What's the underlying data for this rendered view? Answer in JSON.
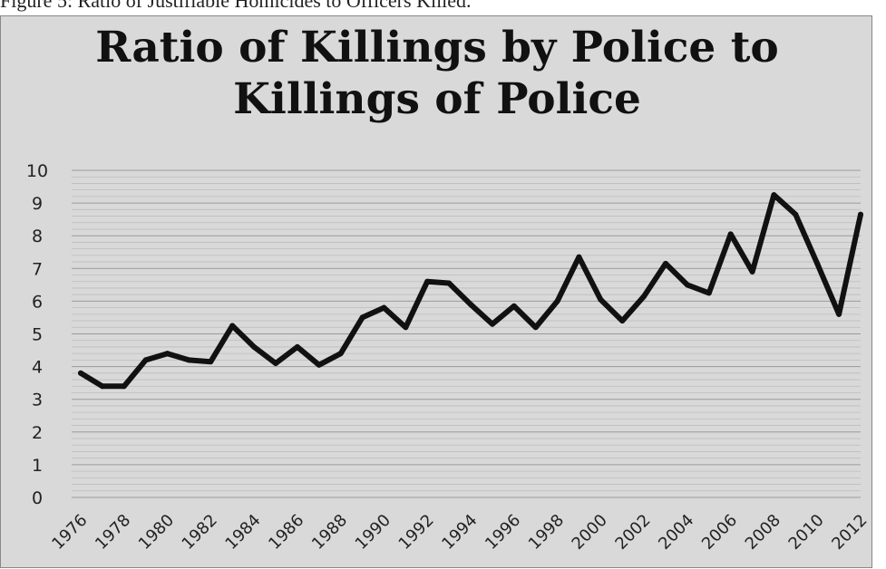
{
  "caption": "Figure 5: Ratio of Justifiable Homicides to Officers Killed.",
  "chart_data": {
    "type": "line",
    "title_lines": [
      "Ratio of Killings by Police to",
      "Killings of Police"
    ],
    "xlabel": "",
    "ylabel": "",
    "ylim": [
      0,
      10
    ],
    "yticks": [
      0,
      1,
      2,
      3,
      4,
      5,
      6,
      7,
      8,
      9,
      10
    ],
    "xticks": [
      "1976",
      "1978",
      "1980",
      "1982",
      "1984",
      "1986",
      "1988",
      "1990",
      "1992",
      "1994",
      "1996",
      "1998",
      "2000",
      "2002",
      "2004",
      "2006",
      "2008",
      "2010",
      "2012"
    ],
    "grid": true,
    "legend": "none",
    "line_color": "#111111",
    "background_color": "#d9d9d9",
    "x": [
      1976,
      1977,
      1978,
      1979,
      1980,
      1981,
      1982,
      1983,
      1984,
      1985,
      1986,
      1987,
      1988,
      1989,
      1990,
      1991,
      1992,
      1993,
      1994,
      1995,
      1996,
      1997,
      1998,
      1999,
      2000,
      2001,
      2002,
      2003,
      2004,
      2005,
      2006,
      2007,
      2008,
      2009,
      2010,
      2011,
      2012
    ],
    "values": [
      3.8,
      3.4,
      3.4,
      4.2,
      4.4,
      4.2,
      4.15,
      5.25,
      4.6,
      4.1,
      4.6,
      4.05,
      4.4,
      5.5,
      5.8,
      5.2,
      6.6,
      6.55,
      5.9,
      5.3,
      5.85,
      5.2,
      6.0,
      7.35,
      6.05,
      5.4,
      6.15,
      7.15,
      6.5,
      6.25,
      8.05,
      6.9,
      9.25,
      8.65,
      7.15,
      5.6,
      8.65
    ]
  }
}
